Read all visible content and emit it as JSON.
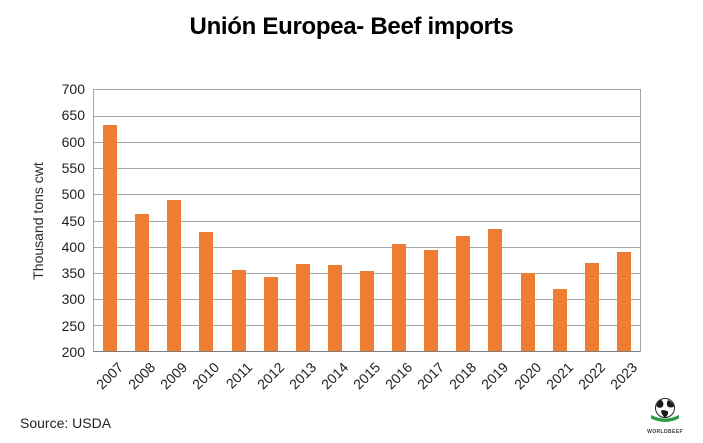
{
  "source_note": "Source: USDA",
  "logo": {
    "name": "worldbeef-globe-logo",
    "text": "WORLDBEEF"
  },
  "chart_data": {
    "type": "bar",
    "title": "Unión Europea- Beef imports",
    "xlabel": "",
    "ylabel": "Thousand tons cwt",
    "categories": [
      "2007",
      "2008",
      "2009",
      "2010",
      "2011",
      "2012",
      "2013",
      "2014",
      "2015",
      "2016",
      "2017",
      "2018",
      "2019",
      "2020",
      "2021",
      "2022",
      "2023"
    ],
    "values": [
      633,
      462,
      490,
      428,
      356,
      341,
      367,
      364,
      354,
      405,
      393,
      421,
      433,
      350,
      319,
      368,
      390
    ],
    "ylim": [
      200,
      700
    ],
    "ytick_step": 50,
    "grid": true,
    "legend": "none",
    "bar_color": "#ED7D31",
    "gridline_color": "#A6A6A6",
    "axis_color": "#7F7F7F",
    "text_color": "#1F1F1F"
  }
}
